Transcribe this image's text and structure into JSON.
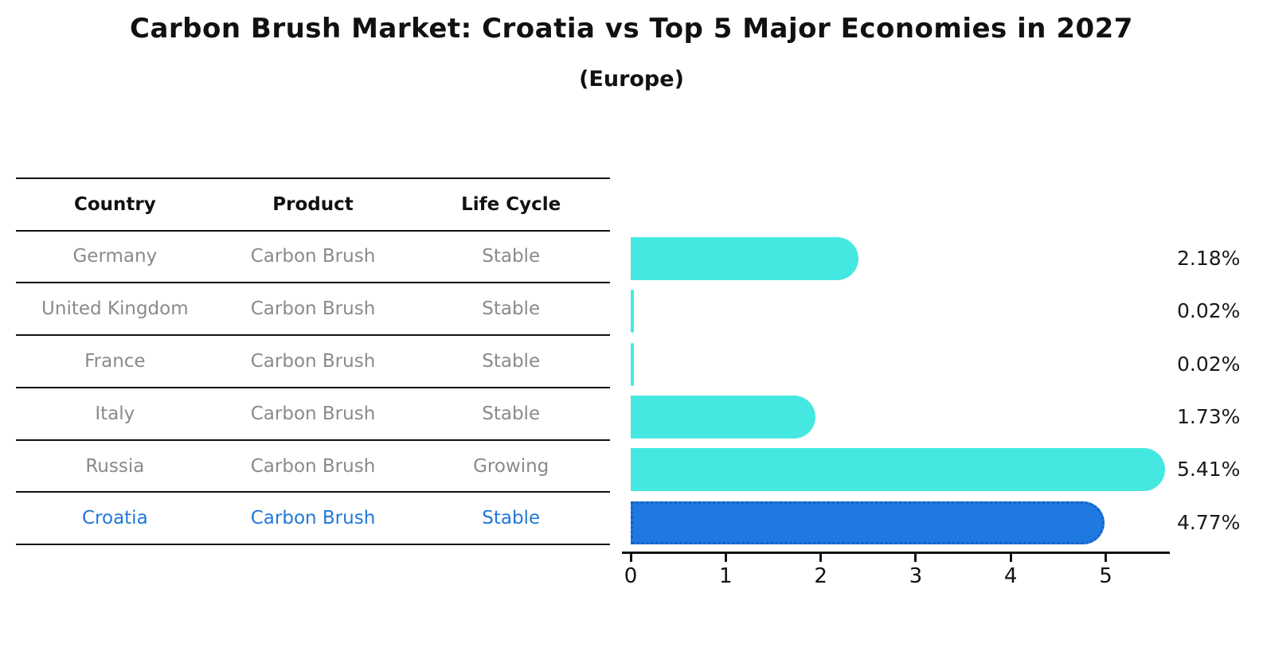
{
  "title": "Carbon Brush Market: Croatia vs Top 5 Major Economies in 2027",
  "subtitle": "(Europe)",
  "table": {
    "headers": [
      "Country",
      "Product",
      "Life Cycle"
    ],
    "rows": [
      {
        "country": "Germany",
        "product": "Carbon Brush",
        "life_cycle": "Stable",
        "highlight": false
      },
      {
        "country": "United Kingdom",
        "product": "Carbon Brush",
        "life_cycle": "Stable",
        "highlight": false
      },
      {
        "country": "France",
        "product": "Carbon Brush",
        "life_cycle": "Stable",
        "highlight": false
      },
      {
        "country": "Italy",
        "product": "Carbon Brush",
        "life_cycle": "Stable",
        "highlight": false
      },
      {
        "country": "Russia",
        "product": "Carbon Brush",
        "life_cycle": "Growing",
        "highlight": false
      },
      {
        "country": "Croatia",
        "product": "Carbon Brush",
        "life_cycle": "Stable",
        "highlight": true
      }
    ]
  },
  "chart_data": {
    "type": "bar",
    "orientation": "horizontal",
    "title": "Carbon Brush Market: Croatia vs Top 5 Major Economies in 2027",
    "subtitle": "(Europe)",
    "categories": [
      "Germany",
      "United Kingdom",
      "France",
      "Italy",
      "Russia",
      "Croatia"
    ],
    "values": [
      2.18,
      0.02,
      0.02,
      1.73,
      5.41,
      4.77
    ],
    "value_labels": [
      "2.18%",
      "0.02%",
      "0.02%",
      "1.73%",
      "5.41%",
      "4.77%"
    ],
    "x_ticks": [
      0,
      1,
      2,
      3,
      4,
      5
    ],
    "xlim": [
      0,
      5.7
    ],
    "grid": false,
    "legend": false,
    "highlight_index": 5,
    "bar_color": "#45e8e0",
    "highlight_color": "#1e7ae0",
    "highlight_border_color": "#1560c8",
    "accent_text_color": "#1f78d8",
    "body_text_color": "#8a8a8a"
  }
}
